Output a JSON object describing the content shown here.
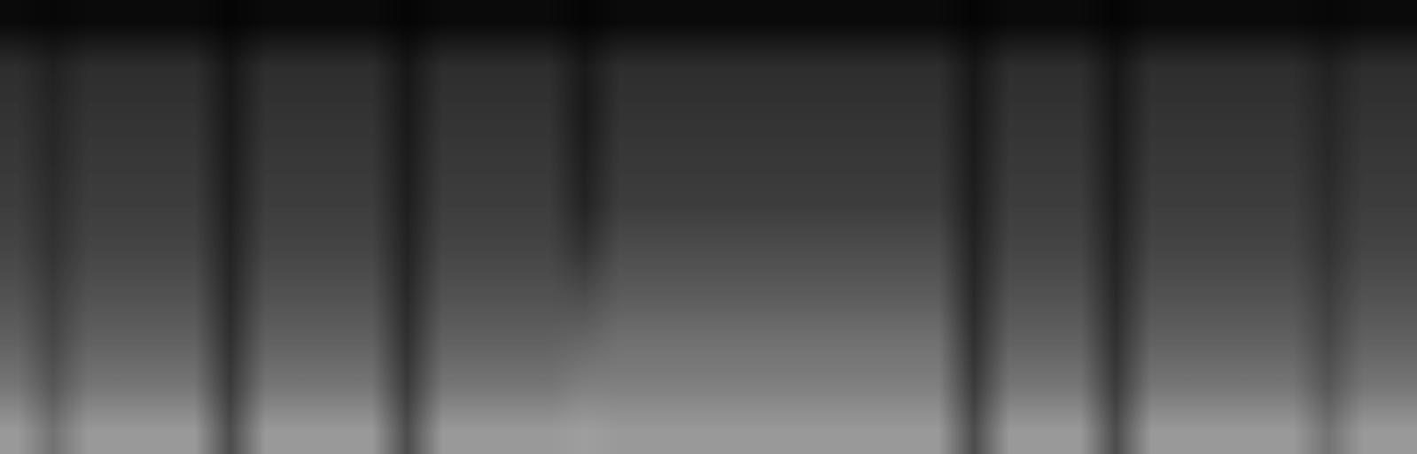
{
  "chart_data": {
    "type": "spectrogram",
    "tick_labels": false,
    "color": "gray",
    "color_range": [
      0,
      1
    ],
    "cells": [
      [
        0.04,
        0.03,
        0.04,
        0.04,
        0.04,
        0.04,
        0.02,
        0.04,
        0.04,
        0.04,
        0.04,
        0.02,
        0.04,
        0.04,
        0.04,
        0.04,
        0.02,
        0.04,
        0.04,
        0.04,
        0.04,
        0.04,
        0.04,
        0.04,
        0.04,
        0.04,
        0.04,
        0.02,
        0.04,
        0.04,
        0.04,
        0.02,
        0.04,
        0.04,
        0.04,
        0.04,
        0.04,
        0.03,
        0.04,
        0.04
      ],
      [
        0.18,
        0.13,
        0.18,
        0.18,
        0.18,
        0.18,
        0.09,
        0.18,
        0.18,
        0.18,
        0.18,
        0.09,
        0.18,
        0.18,
        0.18,
        0.18,
        0.1,
        0.18,
        0.18,
        0.18,
        0.18,
        0.18,
        0.18,
        0.18,
        0.18,
        0.18,
        0.18,
        0.09,
        0.18,
        0.18,
        0.18,
        0.09,
        0.18,
        0.18,
        0.18,
        0.18,
        0.18,
        0.13,
        0.18,
        0.18
      ],
      [
        0.2,
        0.15,
        0.2,
        0.2,
        0.2,
        0.2,
        0.1,
        0.2,
        0.2,
        0.2,
        0.2,
        0.1,
        0.2,
        0.2,
        0.2,
        0.2,
        0.1,
        0.2,
        0.2,
        0.2,
        0.2,
        0.2,
        0.2,
        0.2,
        0.2,
        0.2,
        0.2,
        0.1,
        0.2,
        0.2,
        0.2,
        0.1,
        0.2,
        0.2,
        0.2,
        0.2,
        0.2,
        0.15,
        0.2,
        0.2
      ],
      [
        0.22,
        0.16,
        0.22,
        0.22,
        0.22,
        0.22,
        0.11,
        0.22,
        0.22,
        0.22,
        0.22,
        0.11,
        0.22,
        0.22,
        0.22,
        0.22,
        0.12,
        0.22,
        0.22,
        0.22,
        0.22,
        0.22,
        0.22,
        0.22,
        0.22,
        0.22,
        0.22,
        0.11,
        0.22,
        0.22,
        0.22,
        0.11,
        0.22,
        0.22,
        0.22,
        0.22,
        0.22,
        0.16,
        0.22,
        0.22
      ],
      [
        0.24,
        0.18,
        0.24,
        0.24,
        0.24,
        0.24,
        0.12,
        0.24,
        0.24,
        0.24,
        0.24,
        0.12,
        0.24,
        0.24,
        0.24,
        0.24,
        0.14,
        0.24,
        0.24,
        0.24,
        0.24,
        0.24,
        0.24,
        0.24,
        0.24,
        0.24,
        0.24,
        0.12,
        0.24,
        0.24,
        0.24,
        0.12,
        0.24,
        0.24,
        0.24,
        0.24,
        0.24,
        0.18,
        0.24,
        0.24
      ],
      [
        0.27,
        0.2,
        0.27,
        0.27,
        0.27,
        0.27,
        0.14,
        0.27,
        0.27,
        0.27,
        0.27,
        0.14,
        0.27,
        0.27,
        0.27,
        0.27,
        0.2,
        0.3,
        0.3,
        0.3,
        0.3,
        0.3,
        0.3,
        0.3,
        0.3,
        0.3,
        0.3,
        0.14,
        0.27,
        0.27,
        0.27,
        0.14,
        0.27,
        0.27,
        0.27,
        0.27,
        0.27,
        0.2,
        0.27,
        0.27
      ],
      [
        0.32,
        0.24,
        0.32,
        0.32,
        0.32,
        0.32,
        0.16,
        0.32,
        0.32,
        0.32,
        0.32,
        0.16,
        0.32,
        0.32,
        0.32,
        0.32,
        0.3,
        0.36,
        0.36,
        0.36,
        0.36,
        0.36,
        0.36,
        0.36,
        0.36,
        0.36,
        0.36,
        0.16,
        0.32,
        0.32,
        0.32,
        0.16,
        0.32,
        0.32,
        0.32,
        0.32,
        0.32,
        0.24,
        0.32,
        0.32
      ],
      [
        0.38,
        0.28,
        0.38,
        0.38,
        0.38,
        0.38,
        0.19,
        0.38,
        0.38,
        0.38,
        0.38,
        0.19,
        0.38,
        0.38,
        0.38,
        0.38,
        0.4,
        0.44,
        0.44,
        0.44,
        0.44,
        0.44,
        0.44,
        0.44,
        0.44,
        0.44,
        0.44,
        0.19,
        0.38,
        0.38,
        0.38,
        0.19,
        0.38,
        0.38,
        0.38,
        0.38,
        0.38,
        0.28,
        0.38,
        0.38
      ],
      [
        0.46,
        0.34,
        0.46,
        0.46,
        0.46,
        0.46,
        0.23,
        0.46,
        0.46,
        0.46,
        0.46,
        0.23,
        0.46,
        0.46,
        0.46,
        0.46,
        0.5,
        0.5,
        0.5,
        0.5,
        0.5,
        0.5,
        0.5,
        0.5,
        0.5,
        0.5,
        0.5,
        0.23,
        0.46,
        0.46,
        0.46,
        0.23,
        0.46,
        0.46,
        0.46,
        0.46,
        0.46,
        0.34,
        0.46,
        0.46
      ],
      [
        0.6,
        0.45,
        0.6,
        0.6,
        0.6,
        0.6,
        0.3,
        0.6,
        0.6,
        0.6,
        0.6,
        0.3,
        0.6,
        0.6,
        0.6,
        0.6,
        0.62,
        0.6,
        0.6,
        0.6,
        0.6,
        0.6,
        0.6,
        0.6,
        0.6,
        0.6,
        0.6,
        0.3,
        0.6,
        0.6,
        0.6,
        0.3,
        0.6,
        0.6,
        0.6,
        0.6,
        0.6,
        0.45,
        0.6,
        0.6
      ]
    ]
  }
}
